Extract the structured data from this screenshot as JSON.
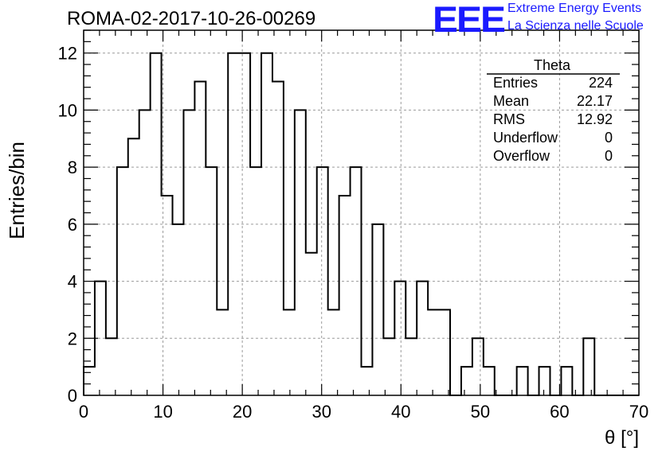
{
  "header": {
    "run_title": "ROMA-02-2017-10-26-00269",
    "logo_text": "EEE",
    "brand_line1": "Extreme Energy Events",
    "brand_line2": "La Scienza nelle Scuole"
  },
  "stats": {
    "title": "Theta",
    "rows": [
      {
        "label": "Entries",
        "value": "224"
      },
      {
        "label": "Mean",
        "value": "22.17"
      },
      {
        "label": "RMS",
        "value": "12.92"
      },
      {
        "label": "Underflow",
        "value": "0"
      },
      {
        "label": "Overflow",
        "value": "0"
      }
    ]
  },
  "chart_data": {
    "type": "bar",
    "style": "step-histogram",
    "xlabel": "θ [°]",
    "ylabel": "Entries/bin",
    "xlim": [
      0,
      70
    ],
    "ylim": [
      0,
      12.8
    ],
    "grid": true,
    "bin_width": 1.4,
    "bin_edges_start": 0,
    "values": [
      1,
      4,
      2,
      8,
      9,
      10,
      12,
      7,
      6,
      10,
      11,
      8,
      3,
      12,
      12,
      8,
      12,
      11,
      3,
      10,
      5,
      8,
      3,
      7,
      8,
      1,
      6,
      2,
      4,
      2,
      4,
      3,
      3,
      0,
      1,
      2,
      1,
      0,
      0,
      1,
      0,
      1,
      0,
      1,
      0,
      2,
      0,
      0,
      0,
      0
    ],
    "x_ticks": [
      0,
      10,
      20,
      30,
      40,
      50,
      60,
      70
    ],
    "y_ticks": [
      0,
      2,
      4,
      6,
      8,
      10,
      12
    ]
  },
  "colors": {
    "line": "#000000",
    "grid": "#9a9a9a",
    "logo": "#1a1aff"
  }
}
